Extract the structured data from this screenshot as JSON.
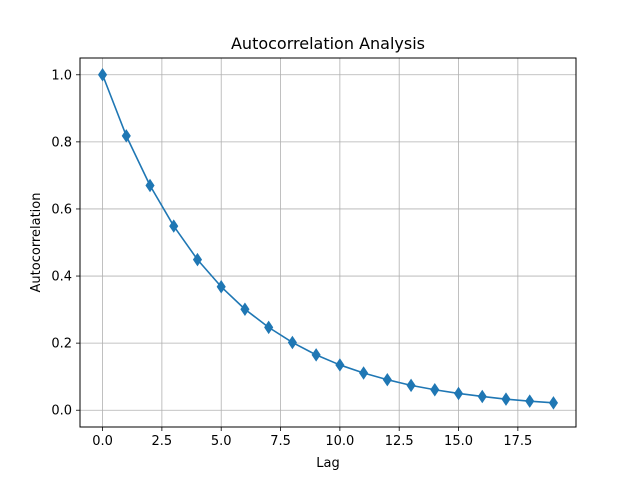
{
  "chart_data": {
    "type": "line",
    "title": "Autocorrelation Analysis",
    "xlabel": "Lag",
    "ylabel": "Autocorrelation",
    "xlim": [
      -0.95,
      19.95
    ],
    "ylim": [
      -0.05,
      1.05
    ],
    "xticks": [
      0.0,
      2.5,
      5.0,
      7.5,
      10.0,
      12.5,
      15.0,
      17.5
    ],
    "xtick_labels": [
      "0.0",
      "2.5",
      "5.0",
      "7.5",
      "10.0",
      "12.5",
      "15.0",
      "17.5"
    ],
    "yticks": [
      0.0,
      0.2,
      0.4,
      0.6,
      0.8,
      1.0
    ],
    "ytick_labels": [
      "0.0",
      "0.2",
      "0.4",
      "0.6",
      "0.8",
      "1.0"
    ],
    "grid": true,
    "marker": "diamond",
    "series": [
      {
        "color": "#1f77b4",
        "x": [
          0,
          1,
          2,
          3,
          4,
          5,
          6,
          7,
          8,
          9,
          10,
          11,
          12,
          13,
          14,
          15,
          16,
          17,
          18,
          19
        ],
        "y": [
          1.0,
          0.818,
          0.67,
          0.549,
          0.449,
          0.368,
          0.301,
          0.247,
          0.202,
          0.165,
          0.135,
          0.111,
          0.091,
          0.074,
          0.061,
          0.05,
          0.041,
          0.033,
          0.027,
          0.022
        ]
      }
    ]
  }
}
